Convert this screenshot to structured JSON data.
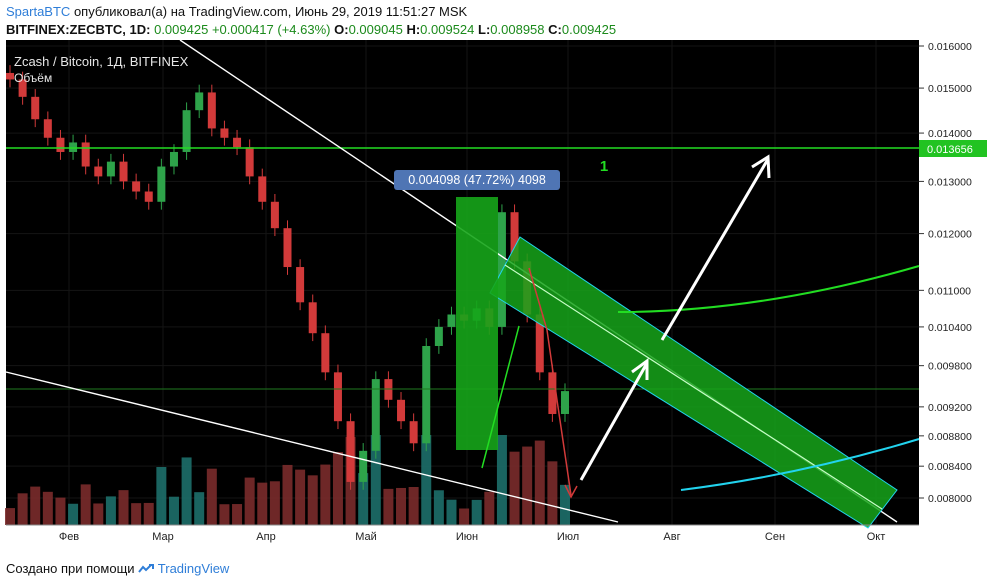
{
  "header": {
    "author": "SpartaBTC",
    "published": "опубликовал(а) на TradingView.com, Июнь 29, 2019 11:51:27 MSK",
    "symbol": "BITFINEX:ZECBTC, 1D",
    "last": "0.009425",
    "change": "+0.000417 (+4.63%)",
    "o_label": "O:",
    "o": "0.009045",
    "h_label": "H:",
    "h": "0.009524",
    "l_label": "L:",
    "l": "0.008958",
    "c_label": "C:",
    "c": "0.009425"
  },
  "footer": {
    "text": "Создано при помощи",
    "brand": "TradingView"
  },
  "colors": {
    "background": "#000000",
    "up": "#2ea34a",
    "down": "#d23a3a",
    "channel": "#16a51a",
    "level": "#22dd22",
    "accent_blue": "#2f7ed8"
  },
  "chart_data": {
    "type": "candlestick",
    "title": "Zcash / Bitcoin, 1Д, BITFINEX",
    "subtitle": "Объём",
    "x_ticks": [
      "Фев",
      "Мар",
      "Апр",
      "Май",
      "Июн",
      "Июл",
      "Авг",
      "Сен",
      "Окт"
    ],
    "y_ticks": [
      "0.016000",
      "0.015000",
      "0.014000",
      "0.013000",
      "0.012000",
      "0.011000",
      "0.010400",
      "0.009800",
      "0.009200",
      "0.008800",
      "0.008400",
      "0.008000"
    ],
    "y_scale": "log",
    "ylim": [
      0.0076,
      0.016
    ],
    "series": [
      {
        "description": "daily close (approx.)",
        "values": [
          0.0152,
          0.0148,
          0.0143,
          0.0139,
          0.0136,
          0.0138,
          0.0133,
          0.0131,
          0.0134,
          0.013,
          0.0128,
          0.0126,
          0.0133,
          0.0136,
          0.0145,
          0.0149,
          0.0141,
          0.0139,
          0.0137,
          0.0131,
          0.0126,
          0.0121,
          0.0114,
          0.0108,
          0.0103,
          0.0097,
          0.009,
          0.0082,
          0.0086,
          0.0096,
          0.0093,
          0.009,
          0.0087,
          0.0101,
          0.0104,
          0.0106,
          0.0105,
          0.0107,
          0.0104,
          0.0124,
          0.0115,
          0.0106,
          0.0097,
          0.0091,
          0.009425
        ]
      }
    ],
    "price_label": "0.013656",
    "horizontal_level": 0.013656,
    "measure_label": "0.004098 (47.72%) 4098",
    "annotation": "1"
  }
}
